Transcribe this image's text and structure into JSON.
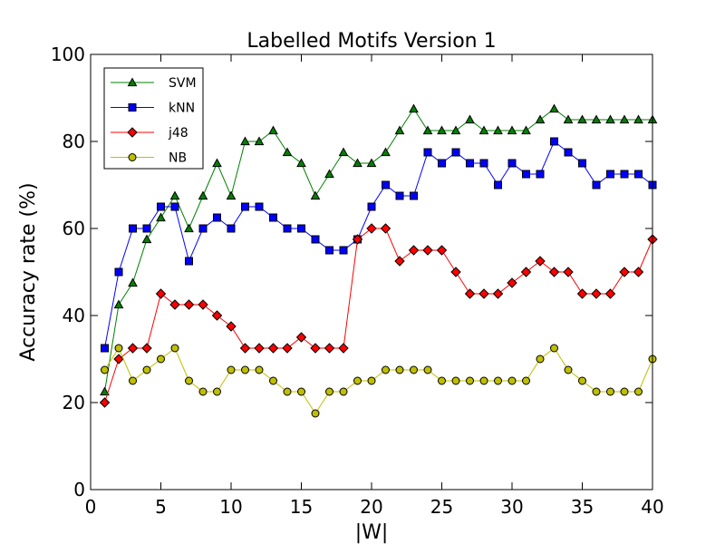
{
  "chart_data": {
    "type": "line",
    "title": "Labelled Motifs Version 1",
    "xlabel": "|W|",
    "ylabel": "Accuracy rate (%)",
    "xlim": [
      0,
      40
    ],
    "ylim": [
      0,
      100
    ],
    "xticks": [
      0,
      5,
      10,
      15,
      20,
      25,
      30,
      35,
      40
    ],
    "yticks": [
      0,
      20,
      40,
      60,
      80,
      100
    ],
    "grid": false,
    "legend_position": "top-left",
    "x": [
      1,
      2,
      3,
      4,
      5,
      6,
      7,
      8,
      9,
      10,
      11,
      12,
      13,
      14,
      15,
      16,
      17,
      18,
      19,
      20,
      21,
      22,
      23,
      24,
      25,
      26,
      27,
      28,
      29,
      30,
      31,
      32,
      33,
      34,
      35,
      36,
      37,
      38,
      39,
      40
    ],
    "series": [
      {
        "name": "SVM",
        "color": "#008000",
        "marker": "triangle",
        "values": [
          22.5,
          42.5,
          47.5,
          57.5,
          62.5,
          67.5,
          60,
          67.5,
          75,
          67.5,
          80,
          80,
          82.5,
          77.5,
          75,
          67.5,
          72.5,
          77.5,
          75,
          75,
          77.5,
          82.5,
          87.5,
          82.5,
          82.5,
          82.5,
          85,
          82.5,
          82.5,
          82.5,
          82.5,
          85,
          87.5,
          85,
          85,
          85,
          85,
          85,
          85,
          85
        ]
      },
      {
        "name": "kNN",
        "color": "#0000ff",
        "marker": "square",
        "values": [
          32.5,
          50,
          60,
          60,
          65,
          65,
          52.5,
          60,
          62.5,
          60,
          65,
          65,
          62.5,
          60,
          60,
          57.5,
          55,
          55,
          57.5,
          65,
          70,
          67.5,
          67.5,
          77.5,
          75,
          77.5,
          75,
          75,
          70,
          75,
          72.5,
          72.5,
          80,
          77.5,
          75,
          70,
          72.5,
          72.5,
          72.5,
          70
        ]
      },
      {
        "name": "j48",
        "color": "#ff0000",
        "marker": "diamond",
        "values": [
          20,
          30,
          32.5,
          32.5,
          45,
          42.5,
          42.5,
          42.5,
          40,
          37.5,
          32.5,
          32.5,
          32.5,
          32.5,
          35,
          32.5,
          32.5,
          32.5,
          57.5,
          60,
          60,
          52.5,
          55,
          55,
          55,
          50,
          45,
          45,
          45,
          47.5,
          50,
          52.5,
          50,
          50,
          45,
          45,
          45,
          50,
          50,
          57.5
        ]
      },
      {
        "name": "NB",
        "color": "#bfbf00",
        "marker": "circle",
        "values": [
          27.5,
          32.5,
          25,
          27.5,
          30,
          32.5,
          25,
          22.5,
          22.5,
          27.5,
          27.5,
          27.5,
          25,
          22.5,
          22.5,
          17.5,
          22.5,
          22.5,
          25,
          25,
          27.5,
          27.5,
          27.5,
          27.5,
          25,
          25,
          25,
          25,
          25,
          25,
          25,
          30,
          32.5,
          27.5,
          25,
          22.5,
          22.5,
          22.5,
          22.5,
          30
        ]
      }
    ]
  }
}
